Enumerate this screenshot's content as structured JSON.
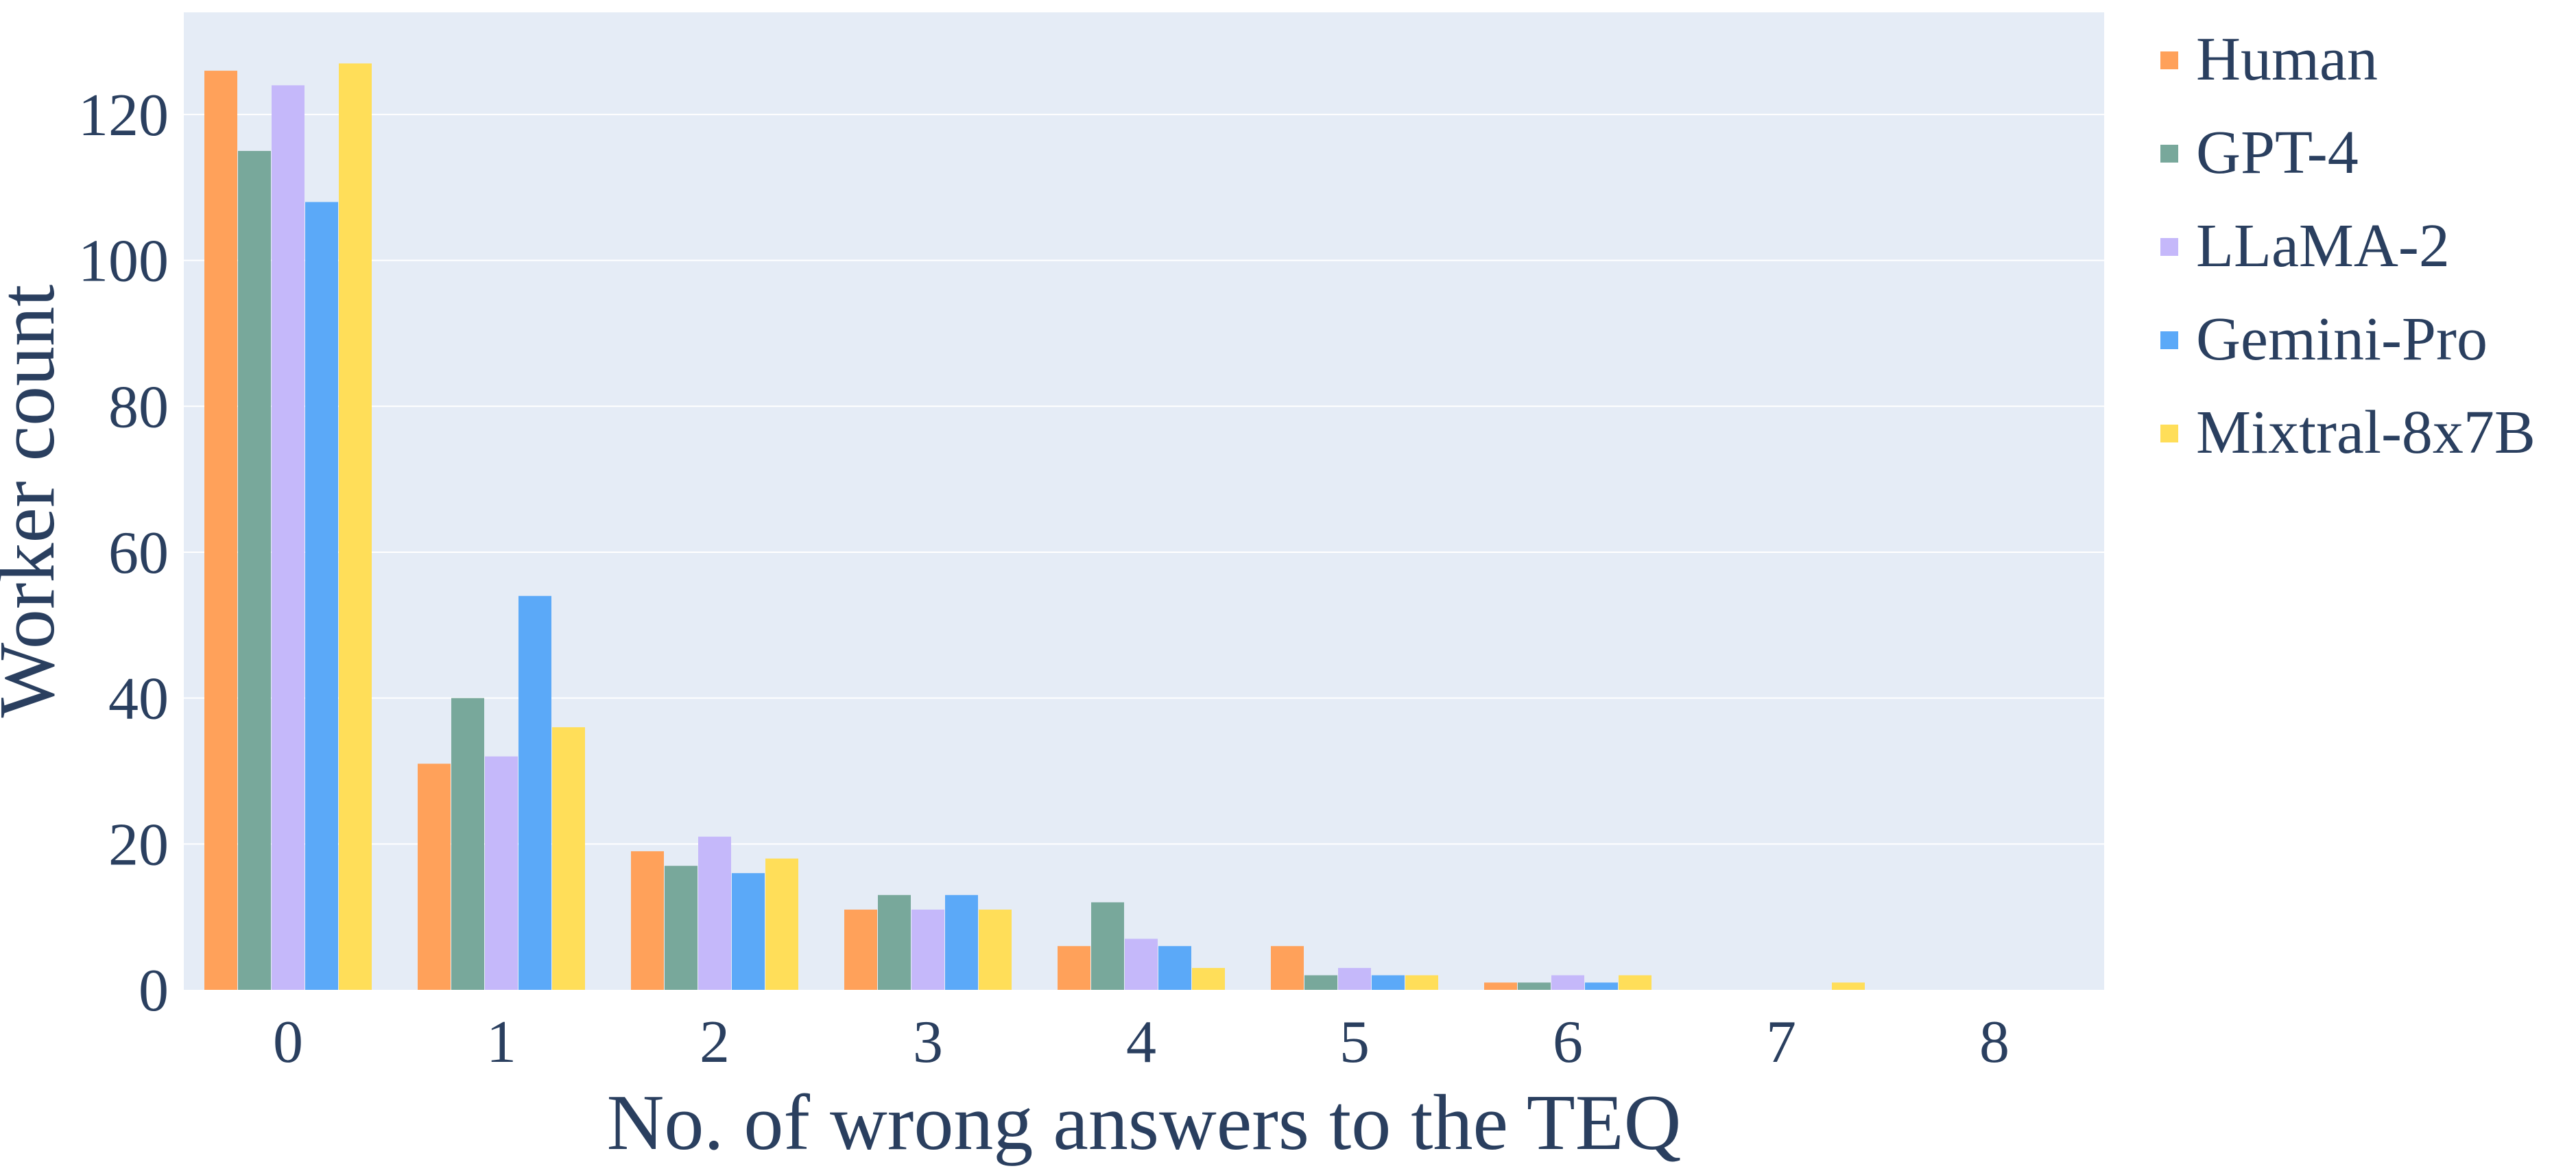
{
  "chart_data": {
    "type": "bar",
    "title": "",
    "xlabel": "No. of wrong answers to the TEQ",
    "ylabel": "Worker count",
    "categories": [
      "0",
      "1",
      "2",
      "3",
      "4",
      "5",
      "6",
      "7",
      "8"
    ],
    "ylim": [
      0,
      134
    ],
    "yticks": [
      0,
      20,
      40,
      60,
      80,
      100,
      120
    ],
    "grid": true,
    "legend_position": "right",
    "series": [
      {
        "name": "Human",
        "color": "#FFA15A",
        "values": [
          126,
          31,
          19,
          11,
          6,
          6,
          1,
          0,
          0
        ]
      },
      {
        "name": "GPT-4",
        "color": "#78A89B",
        "values": [
          115,
          40,
          17,
          13,
          12,
          2,
          1,
          0,
          0
        ]
      },
      {
        "name": "LLaMA-2",
        "color": "#C5B8FA",
        "values": [
          124,
          32,
          21,
          11,
          7,
          3,
          2,
          0,
          0
        ]
      },
      {
        "name": "Gemini-Pro",
        "color": "#5BA9F8",
        "values": [
          108,
          54,
          16,
          13,
          6,
          2,
          1,
          0,
          0
        ]
      },
      {
        "name": "Mixtral-8x7B",
        "color": "#FFDE59",
        "values": [
          127,
          36,
          18,
          11,
          3,
          2,
          2,
          1,
          0
        ]
      }
    ],
    "plot_background": "#E5ECF6",
    "gridline_color": "#FFFFFF",
    "text_color": "#2A3F5F"
  }
}
